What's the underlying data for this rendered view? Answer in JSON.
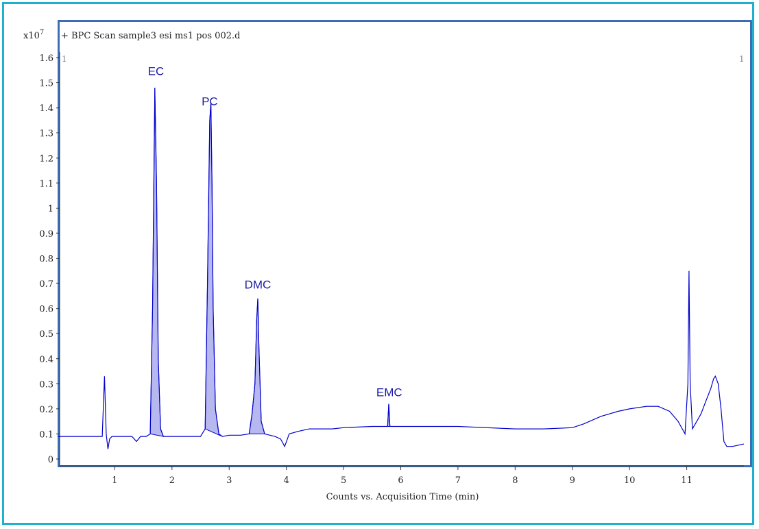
{
  "chart_data": {
    "type": "line",
    "title": "+ BPC Scan sample3 esi ms1 pos 002.d",
    "y_multiplier": "x10",
    "y_multiplier_exp": "7",
    "xlabel": "Counts vs. Acquisition Time (min)",
    "ylabel": "",
    "xlim": [
      0.0,
      12.0
    ],
    "ylim": [
      0,
      1.6
    ],
    "x_ticks": [
      "1",
      "2",
      "3",
      "4",
      "5",
      "6",
      "7",
      "8",
      "9",
      "10",
      "11"
    ],
    "y_ticks": [
      "0",
      "0.1",
      "0.2",
      "0.3",
      "0.4",
      "0.5",
      "0.6",
      "0.7",
      "0.8",
      "0.9",
      "1",
      "1.1",
      "1.2",
      "1.3",
      "1.4",
      "1.5",
      "1.6"
    ],
    "corner_left": "1",
    "corner_right": "1",
    "series": [
      {
        "color": "#0000cc",
        "x": [
          0.0,
          0.5,
          0.78,
          0.82,
          0.85,
          0.88,
          0.91,
          0.95,
          1.0,
          1.3,
          1.38,
          1.45,
          1.55,
          1.62,
          1.66,
          1.7,
          1.73,
          1.76,
          1.8,
          1.85,
          1.92,
          2.2,
          2.5,
          2.58,
          2.62,
          2.66,
          2.68,
          2.7,
          2.72,
          2.76,
          2.82,
          2.88,
          3.0,
          3.2,
          3.35,
          3.4,
          3.45,
          3.48,
          3.5,
          3.52,
          3.56,
          3.62,
          3.8,
          3.9,
          3.97,
          4.05,
          4.2,
          4.4,
          4.6,
          4.8,
          5.0,
          5.5,
          5.77,
          5.79,
          5.81,
          5.83,
          6.0,
          6.5,
          7.0,
          7.5,
          8.0,
          8.5,
          9.0,
          9.2,
          9.5,
          9.8,
          10.0,
          10.3,
          10.5,
          10.7,
          10.85,
          10.97,
          11.02,
          11.04,
          11.06,
          11.1,
          11.15,
          11.25,
          11.35,
          11.42,
          11.47,
          11.5,
          11.55,
          11.6,
          11.65,
          11.7,
          11.8,
          12.0
        ],
        "y": [
          0.09,
          0.09,
          0.09,
          0.33,
          0.1,
          0.04,
          0.08,
          0.09,
          0.09,
          0.09,
          0.07,
          0.09,
          0.09,
          0.1,
          0.6,
          1.48,
          1.1,
          0.4,
          0.12,
          0.09,
          0.09,
          0.09,
          0.09,
          0.12,
          0.7,
          1.35,
          1.42,
          1.1,
          0.6,
          0.2,
          0.1,
          0.09,
          0.095,
          0.095,
          0.1,
          0.18,
          0.3,
          0.55,
          0.64,
          0.45,
          0.15,
          0.1,
          0.09,
          0.08,
          0.05,
          0.1,
          0.11,
          0.12,
          0.12,
          0.12,
          0.125,
          0.13,
          0.13,
          0.22,
          0.13,
          0.13,
          0.13,
          0.13,
          0.13,
          0.125,
          0.12,
          0.12,
          0.125,
          0.14,
          0.17,
          0.19,
          0.2,
          0.21,
          0.21,
          0.19,
          0.15,
          0.1,
          0.3,
          0.75,
          0.3,
          0.12,
          0.14,
          0.18,
          0.24,
          0.28,
          0.32,
          0.33,
          0.3,
          0.2,
          0.07,
          0.05,
          0.05,
          0.06
        ]
      }
    ],
    "filled_peaks": [
      {
        "label": "EC",
        "x_start": 1.62,
        "x_end": 1.85
      },
      {
        "label": "PC",
        "x_start": 2.58,
        "x_end": 2.88
      },
      {
        "label": "DMC",
        "x_start": 3.35,
        "x_end": 3.62
      },
      {
        "label": "EMC",
        "x_start": 5.77,
        "x_end": 5.83
      }
    ],
    "annotations": [
      {
        "text": "EC",
        "x": 1.72,
        "y": 1.53
      },
      {
        "text": "PC",
        "x": 2.66,
        "y": 1.41
      },
      {
        "text": "DMC",
        "x": 3.5,
        "y": 0.68
      },
      {
        "text": "EMC",
        "x": 5.8,
        "y": 0.25
      }
    ]
  }
}
